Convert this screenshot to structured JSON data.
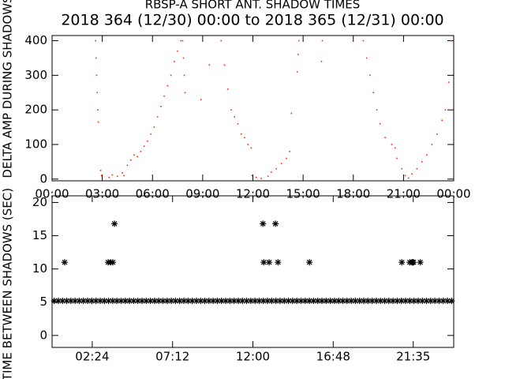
{
  "chart_data": [
    {
      "type": "scatter",
      "title": "RBSP-A SHORT ANT. SHADOW TIMES",
      "subtitle": "2018 364 (12/30) 00:00 to 2018 365 (12/31) 00:00",
      "y_label": "DELTA AMP DURING SHADOWS",
      "color": "#ff2a00",
      "xlim": [
        0,
        24
      ],
      "ylim": [
        -5,
        415
      ],
      "xticks": [
        {
          "value": 0,
          "label": "00:00"
        },
        {
          "value": 3,
          "label": "03:00"
        },
        {
          "value": 6,
          "label": "06:00"
        },
        {
          "value": 9,
          "label": "09:00"
        },
        {
          "value": 12,
          "label": "12:00"
        },
        {
          "value": 15,
          "label": "15:00"
        },
        {
          "value": 18,
          "label": "18:00"
        },
        {
          "value": 21,
          "label": "21:00"
        },
        {
          "value": 24,
          "label": "00:00"
        }
      ],
      "yticks": [
        0,
        100,
        200,
        300,
        400
      ],
      "x": [
        2.6,
        2.63,
        2.66,
        2.7,
        2.73,
        2.76,
        2.9,
        2.95,
        3.4,
        3.6,
        3.9,
        4.2,
        4.3,
        4.5,
        4.7,
        4.9,
        5.1,
        5.3,
        5.5,
        5.7,
        5.9,
        6.1,
        6.3,
        6.5,
        6.7,
        6.9,
        7.1,
        7.3,
        7.5,
        7.7,
        7.8,
        7.85,
        7.9,
        7.95,
        8.9,
        9.4,
        10.1,
        10.3,
        10.5,
        10.7,
        10.9,
        11.1,
        11.3,
        11.5,
        11.7,
        11.9,
        11.95,
        12.2,
        12.5,
        12.9,
        13.1,
        13.4,
        13.7,
        14.0,
        14.2,
        14.3,
        14.65,
        14.7,
        14.75,
        16.1,
        16.15,
        18.6,
        18.8,
        19.0,
        19.2,
        19.4,
        19.6,
        19.9,
        20.3,
        20.5,
        20.6,
        20.9,
        21.1,
        21.3,
        21.5,
        21.8,
        22.1,
        22.4,
        22.7,
        23.0,
        23.3,
        23.5,
        23.7,
        23.85
      ],
      "values": [
        400,
        350,
        300,
        250,
        200,
        165,
        25,
        10,
        5,
        12,
        8,
        18,
        10,
        40,
        55,
        70,
        65,
        80,
        95,
        110,
        130,
        150,
        180,
        210,
        240,
        270,
        300,
        340,
        370,
        400,
        400,
        350,
        300,
        250,
        230,
        330,
        400,
        330,
        260,
        200,
        180,
        160,
        130,
        120,
        100,
        90,
        10,
        5,
        2,
        8,
        20,
        30,
        45,
        60,
        80,
        190,
        310,
        360,
        400,
        340,
        400,
        400,
        350,
        300,
        250,
        200,
        160,
        120,
        100,
        90,
        60,
        30,
        10,
        3,
        15,
        30,
        50,
        70,
        100,
        130,
        170,
        200,
        280,
        400
      ]
    },
    {
      "type": "scatter",
      "y_label": "TIME BETWEEN SHADOWS (SEC)",
      "color": "#000000",
      "xlim": [
        0,
        24
      ],
      "ylim": [
        -1.8,
        21
      ],
      "xticks": [
        {
          "value": 2.4,
          "label": "02:24"
        },
        {
          "value": 7.2,
          "label": "07:12"
        },
        {
          "value": 12,
          "label": "12:00"
        },
        {
          "value": 16.8,
          "label": "16:48"
        },
        {
          "value": 21.583,
          "label": "21:35"
        }
      ],
      "yticks": [
        0,
        5,
        10,
        15,
        20
      ],
      "x": [
        0.125,
        0.375,
        0.625,
        0.875,
        1.125,
        1.375,
        1.625,
        1.875,
        2.125,
        2.375,
        2.625,
        2.875,
        3.125,
        3.375,
        3.625,
        3.875,
        4.125,
        4.375,
        4.625,
        4.875,
        5.125,
        5.375,
        5.625,
        5.875,
        6.125,
        6.375,
        6.625,
        6.875,
        7.125,
        7.375,
        7.625,
        7.875,
        8.125,
        8.375,
        8.625,
        8.875,
        9.125,
        9.375,
        9.625,
        9.875,
        10.125,
        10.375,
        10.625,
        10.875,
        11.125,
        11.375,
        11.625,
        11.875,
        12.125,
        12.375,
        12.625,
        12.875,
        13.125,
        13.375,
        13.625,
        13.875,
        14.125,
        14.375,
        14.625,
        14.875,
        15.125,
        15.375,
        15.625,
        15.875,
        16.125,
        16.375,
        16.625,
        16.875,
        17.125,
        17.375,
        17.625,
        17.875,
        18.125,
        18.375,
        18.625,
        18.875,
        19.125,
        19.375,
        19.625,
        19.875,
        20.125,
        20.375,
        20.625,
        20.875,
        21.125,
        21.375,
        21.625,
        21.875,
        22.125,
        22.375,
        22.625,
        22.875,
        23.125,
        23.375,
        23.625,
        23.875,
        0.75,
        3.35,
        3.5,
        3.63,
        3.73,
        12.6,
        13.35,
        12.65,
        12.97,
        13.5,
        15.38,
        20.9,
        21.37,
        21.5,
        21.55,
        21.6,
        22.0
      ],
      "values": [
        5.2,
        5.2,
        5.2,
        5.2,
        5.2,
        5.2,
        5.2,
        5.2,
        5.2,
        5.2,
        5.2,
        5.2,
        5.2,
        5.2,
        5.2,
        5.2,
        5.2,
        5.2,
        5.2,
        5.2,
        5.2,
        5.2,
        5.2,
        5.2,
        5.2,
        5.2,
        5.2,
        5.2,
        5.2,
        5.2,
        5.2,
        5.2,
        5.2,
        5.2,
        5.2,
        5.2,
        5.2,
        5.2,
        5.2,
        5.2,
        5.2,
        5.2,
        5.2,
        5.2,
        5.2,
        5.2,
        5.2,
        5.2,
        5.2,
        5.2,
        5.2,
        5.2,
        5.2,
        5.2,
        5.2,
        5.2,
        5.2,
        5.2,
        5.2,
        5.2,
        5.2,
        5.2,
        5.2,
        5.2,
        5.2,
        5.2,
        5.2,
        5.2,
        5.2,
        5.2,
        5.2,
        5.2,
        5.2,
        5.2,
        5.2,
        5.2,
        5.2,
        5.2,
        5.2,
        5.2,
        5.2,
        5.2,
        5.2,
        5.2,
        5.2,
        5.2,
        5.2,
        5.2,
        5.2,
        5.2,
        5.2,
        5.2,
        5.2,
        5.2,
        5.2,
        5.2,
        11,
        11,
        11,
        11,
        16.8,
        16.8,
        16.8,
        11,
        11,
        11,
        11,
        11,
        11,
        11,
        11,
        11,
        11
      ]
    }
  ]
}
